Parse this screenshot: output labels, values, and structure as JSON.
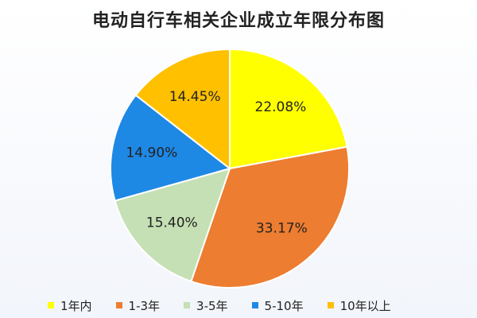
{
  "chart_data": {
    "type": "pie",
    "title": "电动自行车相关企业成立年限分布图",
    "categories": [
      "1年内",
      "1-3年",
      "3-5年",
      "5-10年",
      "10年以上"
    ],
    "values": [
      22.08,
      33.17,
      15.4,
      14.9,
      14.45
    ],
    "labels": [
      "22.08%",
      "33.17%",
      "15.40%",
      "14.90%",
      "14.45%"
    ],
    "colors": [
      "#FFFF00",
      "#ED7D31",
      "#C5E0B4",
      "#1E88E5",
      "#FFC000"
    ],
    "legend_position": "bottom",
    "start_angle": "12 o'clock",
    "direction": "clockwise"
  }
}
